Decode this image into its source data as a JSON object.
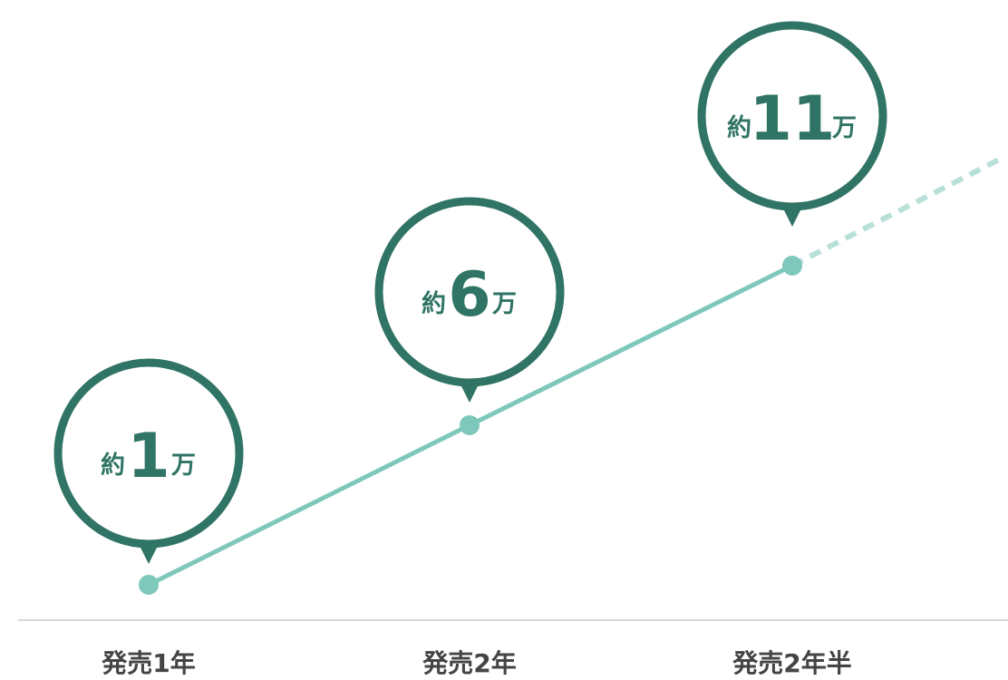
{
  "chart_data": {
    "type": "line",
    "title": "",
    "xlabel": "",
    "ylabel": "",
    "categories": [
      "発売1年",
      "発売2年",
      "発売2年半"
    ],
    "values": [
      1,
      6,
      11
    ],
    "data_labels": [
      {
        "prefix": "約",
        "value": "1",
        "suffix": "万"
      },
      {
        "prefix": "約",
        "value": "6",
        "suffix": "万"
      },
      {
        "prefix": "約",
        "value": "11",
        "suffix": "万"
      }
    ],
    "projection": "dashed continuation beyond last point",
    "grid": false,
    "legend": "none"
  },
  "colors": {
    "bubble": "#2f7464",
    "line": "#7ec8bb",
    "projection": "#b8e0d8",
    "axis": "#d9d9d9",
    "tick_text": "#444444"
  }
}
